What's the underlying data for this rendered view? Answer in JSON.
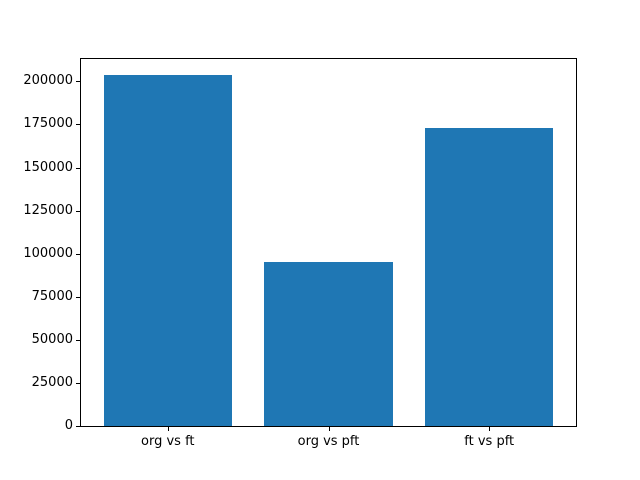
{
  "figure": {
    "background": "#ffffff"
  },
  "chart_data": {
    "type": "bar",
    "categories": [
      "org vs ft",
      "org vs pft",
      "ft vs pft"
    ],
    "values": [
      204000,
      95000,
      173000
    ],
    "yticks": [
      0,
      25000,
      50000,
      75000,
      100000,
      125000,
      150000,
      175000,
      200000
    ],
    "ylim": [
      0,
      213000
    ],
    "bar_color": "#1f77b4",
    "axis_color": "#000000",
    "grid": false,
    "legend": false,
    "bar_width_fraction": 0.8
  }
}
